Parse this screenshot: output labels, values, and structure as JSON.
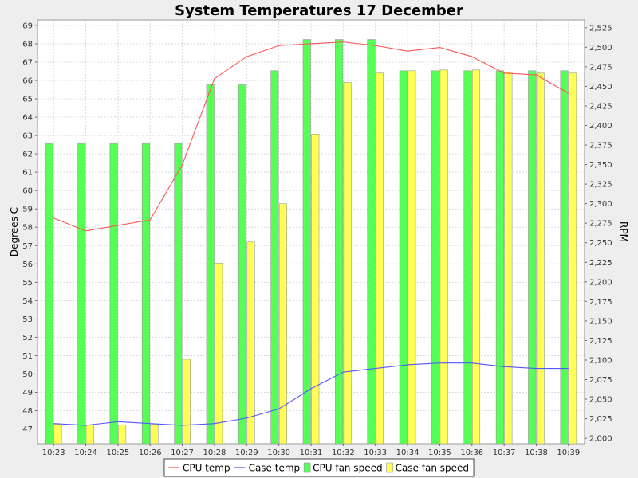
{
  "chart_data": {
    "type": "bar",
    "title": "System Temperatures 17 December",
    "xlabel": "",
    "ylabel_left": "Degrees C",
    "ylabel_right": "RPM",
    "categories": [
      "10:23",
      "10:24",
      "10:25",
      "10:26",
      "10:27",
      "10:28",
      "10:29",
      "10:30",
      "10:31",
      "10:32",
      "10:33",
      "10:34",
      "10:35",
      "10:36",
      "10:37",
      "10:38",
      "10:39"
    ],
    "left_axis": {
      "min": 46.2,
      "max": 69.3,
      "ticks": [
        47,
        48,
        49,
        50,
        51,
        52,
        53,
        54,
        55,
        56,
        57,
        58,
        59,
        60,
        61,
        62,
        63,
        64,
        65,
        66,
        67,
        68,
        69
      ]
    },
    "right_axis": {
      "min": 1993,
      "max": 2535,
      "ticks": [
        2000,
        2025,
        2050,
        2075,
        2100,
        2125,
        2150,
        2175,
        2200,
        2225,
        2250,
        2275,
        2300,
        2325,
        2350,
        2375,
        2400,
        2425,
        2450,
        2475,
        2500,
        2525
      ]
    },
    "bar_series": [
      {
        "name": "CPU fan speed",
        "axis": "right",
        "color": "#55ff55",
        "values": [
          2377,
          2377,
          2377,
          2377,
          2377,
          2452,
          2452,
          2470,
          2510,
          2510,
          2510,
          2470,
          2470,
          2470,
          2470,
          2470,
          2470
        ]
      },
      {
        "name": "Case fan speed",
        "axis": "right",
        "color": "#ffff55",
        "values": [
          2018,
          2017,
          2017,
          2018,
          2101,
          2224,
          2251,
          2300,
          2389,
          2455,
          2467,
          2470,
          2471,
          2471,
          2468,
          2467,
          2467
        ]
      }
    ],
    "line_series": [
      {
        "name": "CPU temp",
        "axis": "left",
        "color": "#ff5555",
        "values": [
          58.5,
          57.8,
          58.1,
          58.4,
          61.4,
          66.1,
          67.3,
          67.9,
          68.0,
          68.1,
          67.9,
          67.6,
          67.8,
          67.3,
          66.4,
          66.3,
          65.3
        ]
      },
      {
        "name": "Case temp",
        "axis": "left",
        "color": "#5555ff",
        "values": [
          47.3,
          47.2,
          47.4,
          47.3,
          47.2,
          47.3,
          47.6,
          48.1,
          49.2,
          50.1,
          50.3,
          50.5,
          50.6,
          50.6,
          50.4,
          50.3,
          50.3
        ]
      }
    ],
    "grid": true,
    "legend_placement": "bottom",
    "legend": [
      {
        "label": "CPU temp",
        "kind": "line",
        "color": "#ff5555"
      },
      {
        "label": "Case temp",
        "kind": "line",
        "color": "#5555ff"
      },
      {
        "label": "CPU fan speed",
        "kind": "box",
        "color": "#55ff55"
      },
      {
        "label": "Case fan speed",
        "kind": "box",
        "color": "#ffff55"
      }
    ]
  }
}
